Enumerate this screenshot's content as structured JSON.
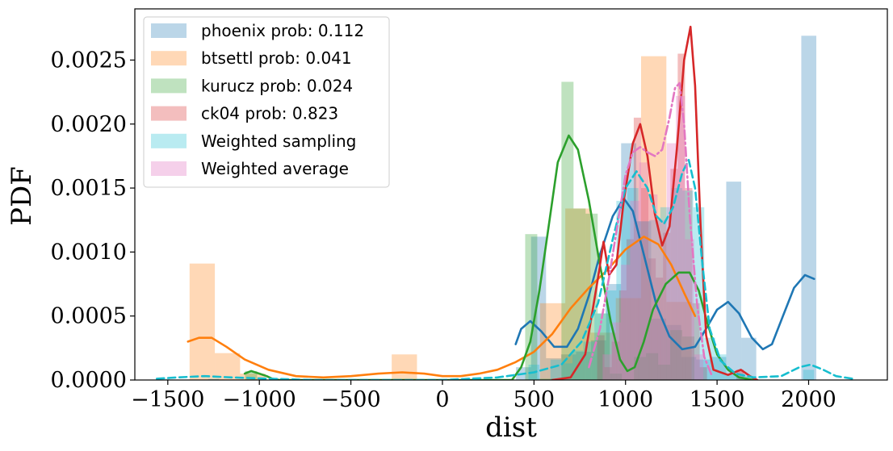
{
  "chart_data": {
    "type": "histogram+kde",
    "xlabel": "dist",
    "ylabel": "PDF",
    "xlim": [
      -1680,
      2430
    ],
    "ylim": [
      0,
      0.0029
    ],
    "x_ticks": [
      -1500,
      -1000,
      -500,
      0,
      500,
      1000,
      1500,
      2000
    ],
    "x_tick_labels": [
      "−1500",
      "−1000",
      "−500",
      "0",
      "500",
      "1000",
      "1500",
      "2000"
    ],
    "y_ticks": [
      0,
      0.0005,
      0.001,
      0.0015,
      0.002,
      0.0025
    ],
    "y_tick_labels": [
      "0.0000",
      "0.0005",
      "0.0010",
      "0.0015",
      "0.0020",
      "0.0025"
    ],
    "legend_position": "upper-left",
    "series": [
      {
        "name": "phoenix prob: 0.112",
        "color": "#1f77b4",
        "hist_alpha": 0.3,
        "bin_width": 82,
        "bins": [
          [
            443,
            0.0001
          ],
          [
            525,
            0.00112
          ],
          [
            607,
            0.00017
          ],
          [
            689,
            0.0002
          ],
          [
            771,
            0.00022
          ],
          [
            853,
            0.00031
          ],
          [
            935,
            0.00075
          ],
          [
            1017,
            0.00185
          ],
          [
            1099,
            0.00124
          ],
          [
            1181,
            0.00048
          ],
          [
            1263,
            0.00043
          ],
          [
            1345,
            0.00018
          ],
          [
            1427,
            0.00016
          ],
          [
            1509,
            0.00018
          ],
          [
            1591,
            0.00155
          ],
          [
            1673,
            0.00033
          ],
          [
            2001,
            0.00269
          ]
        ],
        "kde_style": "solid",
        "kde": [
          [
            400,
            0.00028
          ],
          [
            430,
            0.0004
          ],
          [
            480,
            0.00046
          ],
          [
            540,
            0.00038
          ],
          [
            610,
            0.00026
          ],
          [
            680,
            0.00026
          ],
          [
            740,
            0.0004
          ],
          [
            800,
            0.00066
          ],
          [
            860,
            0.00098
          ],
          [
            930,
            0.00128
          ],
          [
            990,
            0.00142
          ],
          [
            1040,
            0.00132
          ],
          [
            1100,
            0.00098
          ],
          [
            1170,
            0.00058
          ],
          [
            1240,
            0.00034
          ],
          [
            1310,
            0.00024
          ],
          [
            1380,
            0.00026
          ],
          [
            1440,
            0.0004
          ],
          [
            1500,
            0.00055
          ],
          [
            1560,
            0.00061
          ],
          [
            1620,
            0.00052
          ],
          [
            1690,
            0.00033
          ],
          [
            1750,
            0.00024
          ],
          [
            1800,
            0.00028
          ],
          [
            1860,
            0.0005
          ],
          [
            1920,
            0.00072
          ],
          [
            1980,
            0.00082
          ],
          [
            2030,
            0.00079
          ]
        ]
      },
      {
        "name": "btsettl prob: 0.041",
        "color": "#ff7f0e",
        "hist_alpha": 0.3,
        "bin_width": 138,
        "bins": [
          [
            -1312,
            0.00091
          ],
          [
            -1174,
            0.00021
          ],
          [
            -1036,
            5e-05
          ],
          [
            -208,
            0.0002
          ],
          [
            602,
            0.0006
          ],
          [
            740,
            0.00134
          ],
          [
            878,
            0.00037
          ],
          [
            1016,
            0.00064
          ],
          [
            1154,
            0.00253
          ],
          [
            1292,
            0.00061
          ]
        ],
        "kde_style": "solid",
        "kde": [
          [
            -1390,
            0.0003
          ],
          [
            -1330,
            0.00033
          ],
          [
            -1260,
            0.00033
          ],
          [
            -1180,
            0.00026
          ],
          [
            -1080,
            0.00016
          ],
          [
            -950,
            8e-05
          ],
          [
            -800,
            3e-05
          ],
          [
            -650,
            2e-05
          ],
          [
            -500,
            3e-05
          ],
          [
            -350,
            5e-05
          ],
          [
            -220,
            6e-05
          ],
          [
            -100,
            5e-05
          ],
          [
            0,
            3e-05
          ],
          [
            100,
            3e-05
          ],
          [
            200,
            5e-05
          ],
          [
            300,
            8e-05
          ],
          [
            400,
            0.00014
          ],
          [
            500,
            0.00022
          ],
          [
            600,
            0.00036
          ],
          [
            700,
            0.00056
          ],
          [
            800,
            0.00072
          ],
          [
            900,
            0.00086
          ],
          [
            1000,
            0.00102
          ],
          [
            1100,
            0.00112
          ],
          [
            1180,
            0.00106
          ],
          [
            1250,
            0.0009
          ],
          [
            1320,
            0.00068
          ],
          [
            1380,
            0.0005
          ]
        ]
      },
      {
        "name": "kurucz prob: 0.024",
        "color": "#2ca02c",
        "hist_alpha": 0.3,
        "bin_width": 66,
        "bins": [
          [
            -1045,
            7e-05
          ],
          [
            485,
            0.00114
          ],
          [
            551,
            1e-05
          ],
          [
            617,
            1e-05
          ],
          [
            683,
            0.00233
          ],
          [
            749,
            0.00134
          ],
          [
            815,
            0.0013
          ],
          [
            881,
            0.00052
          ],
          [
            947,
            5e-05
          ],
          [
            1079,
            0.00018
          ],
          [
            1145,
            0.00021
          ],
          [
            1211,
            0.00012
          ],
          [
            1277,
            0.00039
          ],
          [
            1343,
            0.00034
          ]
        ],
        "kde_style": "solid",
        "kde": [
          [
            -1080,
            5e-05
          ],
          [
            -1045,
            7e-05
          ],
          [
            -1000,
            5e-05
          ],
          [
            -960,
            3e-05
          ],
          [
            -930,
            1e-05
          ],
          [
            -890,
            0.0
          ],
          [
            380,
            0.0
          ],
          [
            430,
            0.0001
          ],
          [
            480,
            0.0003
          ],
          [
            530,
            0.0007
          ],
          [
            580,
            0.0012
          ],
          [
            630,
            0.0017
          ],
          [
            690,
            0.00191
          ],
          [
            740,
            0.0018
          ],
          [
            800,
            0.0014
          ],
          [
            860,
            0.0009
          ],
          [
            920,
            0.00045
          ],
          [
            970,
            0.00016
          ],
          [
            1010,
            7e-05
          ],
          [
            1050,
            0.0001
          ],
          [
            1100,
            0.0003
          ],
          [
            1150,
            0.00055
          ],
          [
            1220,
            0.00075
          ],
          [
            1290,
            0.00084
          ],
          [
            1350,
            0.00084
          ],
          [
            1400,
            0.0007
          ],
          [
            1450,
            0.00043
          ],
          [
            1500,
            0.0002
          ],
          [
            1560,
            8e-05
          ],
          [
            1620,
            2e-05
          ],
          [
            1700,
            0.0
          ]
        ]
      },
      {
        "name": "ck04 prob: 0.823",
        "color": "#d62728",
        "hist_alpha": 0.3,
        "bin_width": 40,
        "bins": [
          [
            865,
            0.00035
          ],
          [
            905,
            0.0001
          ],
          [
            945,
            0.0003
          ],
          [
            985,
            0.0007
          ],
          [
            1025,
            0.0011
          ],
          [
            1065,
            0.00205
          ],
          [
            1105,
            0.0015
          ],
          [
            1145,
            0.00095
          ],
          [
            1185,
            0.0008
          ],
          [
            1225,
            0.00115
          ],
          [
            1265,
            0.00165
          ],
          [
            1305,
            0.00255
          ],
          [
            1345,
            0.0015
          ],
          [
            1385,
            0.0006
          ],
          [
            1425,
            0.0001
          ],
          [
            1625,
            8e-05
          ]
        ],
        "kde_style": "solid",
        "kde": [
          [
            600,
            0.0
          ],
          [
            700,
            2e-05
          ],
          [
            780,
            0.0002
          ],
          [
            850,
            0.0008
          ],
          [
            880,
            0.00108
          ],
          [
            910,
            0.00082
          ],
          [
            950,
            0.0009
          ],
          [
            990,
            0.0014
          ],
          [
            1040,
            0.00185
          ],
          [
            1080,
            0.002
          ],
          [
            1120,
            0.00175
          ],
          [
            1160,
            0.0013
          ],
          [
            1200,
            0.00105
          ],
          [
            1240,
            0.0012
          ],
          [
            1280,
            0.0018
          ],
          [
            1320,
            0.0025
          ],
          [
            1355,
            0.00276
          ],
          [
            1380,
            0.0023
          ],
          [
            1410,
            0.0012
          ],
          [
            1440,
            0.00035
          ],
          [
            1480,
            8e-05
          ],
          [
            1560,
            4e-05
          ],
          [
            1630,
            8e-05
          ],
          [
            1680,
            3e-05
          ],
          [
            1720,
            0.0
          ]
        ]
      },
      {
        "name": "Weighted sampling",
        "color": "#17becf",
        "hist_alpha": 0.3,
        "bin_width": 60,
        "bins": [
          [
            -1520,
            1e-05
          ],
          [
            -1250,
            1e-05
          ],
          [
            500,
            0.00012
          ],
          [
            620,
            0.00016
          ],
          [
            680,
            0.00013
          ],
          [
            740,
            0.00023
          ],
          [
            800,
            0.0003
          ],
          [
            860,
            0.00052
          ],
          [
            920,
            0.0007
          ],
          [
            980,
            0.0014
          ],
          [
            1040,
            0.0015
          ],
          [
            1100,
            0.00124
          ],
          [
            1160,
            0.00125
          ],
          [
            1220,
            0.00135
          ],
          [
            1280,
            0.0015
          ],
          [
            1340,
            0.00148
          ],
          [
            1400,
            0.00135
          ],
          [
            1460,
            0.00033
          ],
          [
            1520,
            0.0002
          ],
          [
            1580,
            5e-05
          ],
          [
            1640,
            3e-05
          ],
          [
            2000,
            8e-05
          ]
        ],
        "kde_style": "dashed",
        "kde": [
          [
            -1560,
            1e-05
          ],
          [
            -1450,
            2e-05
          ],
          [
            -1300,
            3e-05
          ],
          [
            -1150,
            2e-05
          ],
          [
            -950,
            1e-05
          ],
          [
            -700,
            0.0
          ],
          [
            -300,
            0.0
          ],
          [
            0,
            0.0
          ],
          [
            300,
            2e-05
          ],
          [
            500,
            6e-05
          ],
          [
            650,
            0.00012
          ],
          [
            760,
            0.0003
          ],
          [
            850,
            0.0006
          ],
          [
            930,
            0.0011
          ],
          [
            1000,
            0.0015
          ],
          [
            1060,
            0.00163
          ],
          [
            1120,
            0.0015
          ],
          [
            1170,
            0.00128
          ],
          [
            1210,
            0.00122
          ],
          [
            1260,
            0.00135
          ],
          [
            1310,
            0.00162
          ],
          [
            1345,
            0.00172
          ],
          [
            1380,
            0.0015
          ],
          [
            1420,
            0.0009
          ],
          [
            1460,
            0.0004
          ],
          [
            1520,
            0.00015
          ],
          [
            1600,
            5e-05
          ],
          [
            1700,
            2e-05
          ],
          [
            1850,
            3e-05
          ],
          [
            1950,
            0.0001
          ],
          [
            2010,
            0.00012
          ],
          [
            2080,
            8e-05
          ],
          [
            2150,
            3e-05
          ],
          [
            2240,
            1e-05
          ]
        ]
      },
      {
        "name": "Weighted average",
        "color": "#e377c2",
        "hist_alpha": 0.35,
        "bin_width": 50,
        "bins": [
          [
            900,
            0.0002
          ],
          [
            950,
            0.00045
          ],
          [
            1000,
            0.0009
          ],
          [
            1050,
            0.0014
          ],
          [
            1100,
            0.0017
          ],
          [
            1150,
            0.00145
          ],
          [
            1200,
            0.00125
          ],
          [
            1250,
            0.00185
          ],
          [
            1300,
            0.00222
          ],
          [
            1350,
            0.0011
          ],
          [
            1400,
            0.0002
          ]
        ],
        "kde_style": "dashdot",
        "kde": [
          [
            800,
            0.0001
          ],
          [
            860,
            0.0004
          ],
          [
            910,
            0.0008
          ],
          [
            960,
            0.00125
          ],
          [
            1000,
            0.0016
          ],
          [
            1040,
            0.00178
          ],
          [
            1080,
            0.00182
          ],
          [
            1120,
            0.00178
          ],
          [
            1160,
            0.00175
          ],
          [
            1200,
            0.0018
          ],
          [
            1240,
            0.00205
          ],
          [
            1270,
            0.00228
          ],
          [
            1295,
            0.00232
          ],
          [
            1320,
            0.002
          ],
          [
            1350,
            0.0013
          ],
          [
            1390,
            0.0006
          ],
          [
            1430,
            0.00018
          ],
          [
            1470,
            4e-05
          ]
        ]
      }
    ]
  }
}
